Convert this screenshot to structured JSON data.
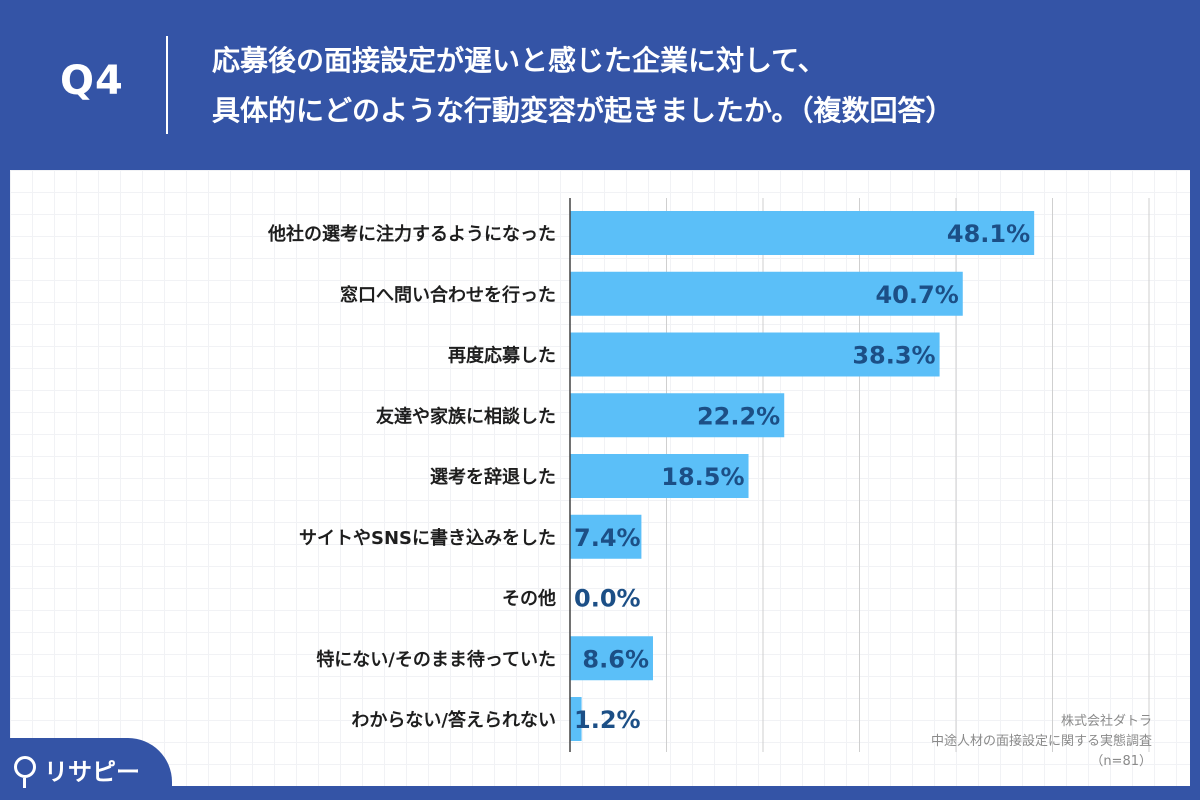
{
  "header": {
    "question": "Q4",
    "title_line1": "応募後の面接設定が遅いと感じた企業に対して、",
    "title_line2": "具体的にどのような行動変容が起きましたか。（複数回答）"
  },
  "chart_data": {
    "type": "bar",
    "orientation": "horizontal",
    "categories": [
      "他社の選考に注力するようになった",
      "窓口へ問い合わせを行った",
      "再度応募した",
      "友達や家族に相談した",
      "選考を辞退した",
      "サイトやSNSに書き込みをした",
      "その他",
      "特にない/そのまま待っていた",
      "わからない/答えられない"
    ],
    "values": [
      48.1,
      40.7,
      38.3,
      22.2,
      18.5,
      7.4,
      0.0,
      8.6,
      1.2
    ],
    "value_labels": [
      "48.1%",
      "40.7%",
      "38.3%",
      "22.2%",
      "18.5%",
      "7.4%",
      "0.0%",
      "8.6%",
      "1.2%"
    ],
    "xlim": [
      0,
      60
    ],
    "grid": true,
    "bar_color": "#5bbff8",
    "value_label_color": "#1c4f86"
  },
  "source": {
    "company": "株式会社ダトラ",
    "survey": "中途人材の面接設定に関する実態調査",
    "sample": "（n=81）"
  },
  "logo": {
    "text": "リサピー",
    "icon": "map-pin-icon"
  },
  "colors": {
    "background": "#3454a6",
    "panel": "#ffffff"
  }
}
